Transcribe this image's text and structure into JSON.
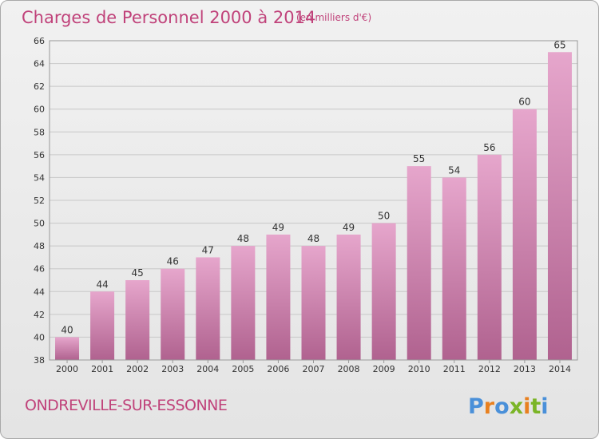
{
  "header": {
    "title": "Charges de Personnel 2000 à 2014",
    "subtitle": "(en milliers d'€)"
  },
  "footer": {
    "place": "ONDREVILLE-SUR-ESSONNE",
    "logo": "Proxiti"
  },
  "colors": {
    "accent": "#c0427a",
    "bar_top": "#e6a6cc",
    "bar_bottom": "#b0628f",
    "logo_letters": [
      "#4a90d9",
      "#e8801f",
      "#4a90d9",
      "#7bb527",
      "#e8801f",
      "#7bb527",
      "#4a90d9"
    ]
  },
  "chart_data": {
    "type": "bar",
    "title": "Charges de Personnel 2000 à 2014",
    "subtitle": "(en milliers d'€)",
    "xlabel": "",
    "ylabel": "",
    "categories": [
      "2000",
      "2001",
      "2002",
      "2003",
      "2004",
      "2005",
      "2006",
      "2007",
      "2008",
      "2009",
      "2010",
      "2011",
      "2012",
      "2013",
      "2014"
    ],
    "values": [
      40,
      44,
      45,
      46,
      47,
      48,
      49,
      48,
      49,
      50,
      55,
      54,
      56,
      60,
      65
    ],
    "ylim": [
      38,
      66
    ],
    "yticks": [
      38,
      40,
      42,
      44,
      46,
      48,
      50,
      52,
      54,
      56,
      58,
      60,
      62,
      64,
      66
    ],
    "grid": true,
    "legend": "none"
  }
}
